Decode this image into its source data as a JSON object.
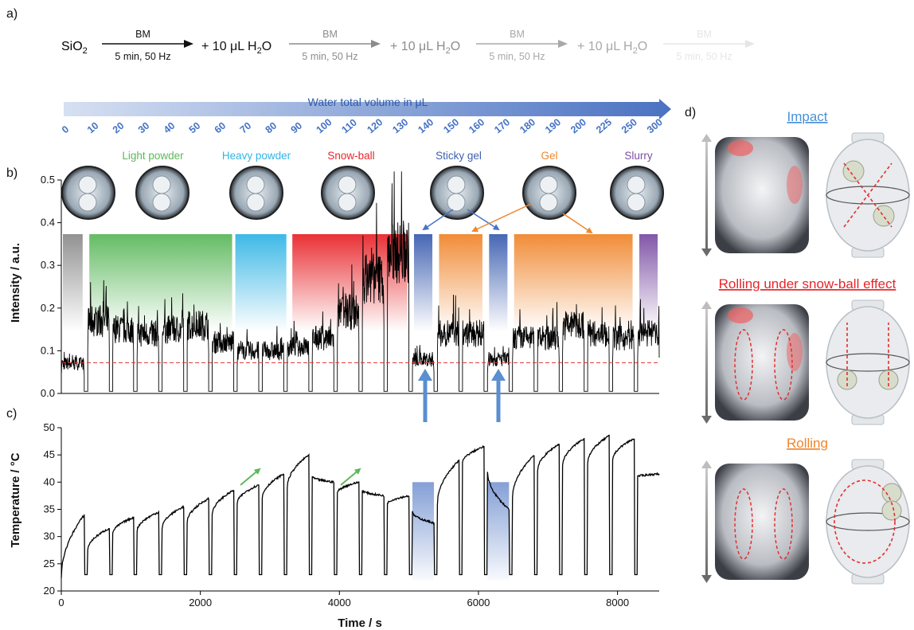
{
  "panel_labels": {
    "a": "a)",
    "b": "b)",
    "c": "c)",
    "d": "d)"
  },
  "scheme": {
    "reactant": "SiO",
    "reactant_sub": "2",
    "step_top": "BM",
    "step_bottom": "5 min, 50 Hz",
    "water_add": "+ 10 μL H",
    "water_sub": "2",
    "water_tail": "O",
    "steps": [
      {
        "color": "#111111"
      },
      {
        "color": "#8c8c8c"
      },
      {
        "color": "#a8a8a8"
      },
      {
        "color": "#e6e6e6"
      }
    ]
  },
  "water_axis": {
    "title": "Water total volume in μL",
    "ticks": [
      "0",
      "10",
      "20",
      "30",
      "40",
      "50",
      "60",
      "70",
      "80",
      "90",
      "100",
      "110",
      "120",
      "130",
      "140",
      "150",
      "160",
      "170",
      "180",
      "190",
      "200",
      "225",
      "250",
      "300"
    ],
    "color": "#4472c4"
  },
  "phases": [
    {
      "label": "Light powder",
      "color": "#5cb85c"
    },
    {
      "label": "Heavy powder",
      "color": "#33b5e5"
    },
    {
      "label": "Snow-ball",
      "color": "#e8262b"
    },
    {
      "label": "Sticky gel",
      "color": "#3d5fb0"
    },
    {
      "label": "Gel",
      "color": "#f0862d"
    },
    {
      "label": "Slurry",
      "color": "#7b4ea3"
    }
  ],
  "modes": [
    {
      "title": "Impact",
      "color": "#4a90d9"
    },
    {
      "title": "Rolling under snow-ball effect",
      "color": "#e8262b"
    },
    {
      "title": "Rolling",
      "color": "#f0862d"
    }
  ],
  "chart_data": [
    {
      "type": "line",
      "panel": "b",
      "xlabel": "",
      "ylabel": "Intensity / a.u.",
      "xlim": [
        0,
        8600
      ],
      "ylim": [
        0,
        0.5
      ],
      "yticks": [
        0.0,
        0.1,
        0.2,
        0.3,
        0.4,
        0.5
      ],
      "baseline": 0.072,
      "milling_intervals_s": [
        [
          0,
          330
        ],
        [
          380,
          690
        ],
        [
          740,
          1040
        ],
        [
          1090,
          1400
        ],
        [
          1450,
          1760
        ],
        [
          1810,
          2120
        ],
        [
          2170,
          2480
        ],
        [
          2530,
          2840
        ],
        [
          2890,
          3200
        ],
        [
          3250,
          3560
        ],
        [
          3610,
          3920
        ],
        [
          3970,
          4280
        ],
        [
          4330,
          4640
        ],
        [
          4690,
          5000
        ],
        [
          5050,
          5360
        ],
        [
          5410,
          5720
        ],
        [
          5770,
          6080
        ],
        [
          6130,
          6440
        ],
        [
          6490,
          6800
        ],
        [
          6850,
          7160
        ],
        [
          7210,
          7520
        ],
        [
          7570,
          7880
        ],
        [
          7930,
          8240
        ],
        [
          8290,
          8600
        ]
      ],
      "segment_mean_intensity": [
        0.07,
        0.17,
        0.15,
        0.14,
        0.15,
        0.16,
        0.12,
        0.1,
        0.1,
        0.11,
        0.13,
        0.19,
        0.27,
        0.33,
        0.08,
        0.14,
        0.14,
        0.08,
        0.13,
        0.13,
        0.16,
        0.14,
        0.13,
        0.14
      ],
      "phase_regions_s": [
        {
          "phase": "none",
          "range": [
            0,
            330
          ],
          "color": "#8c8c8c"
        },
        {
          "phase": "Light powder",
          "range": [
            380,
            2480
          ],
          "color": "#5cb85c"
        },
        {
          "phase": "Heavy powder",
          "range": [
            2480,
            3260
          ],
          "color": "#33b5e5"
        },
        {
          "phase": "Snow-ball",
          "range": [
            3300,
            5000
          ],
          "color": "#e8262b"
        },
        {
          "phase": "Sticky gel",
          "range": [
            5050,
            5360
          ],
          "color": "#3d5fb0"
        },
        {
          "phase": "Gel",
          "range": [
            5410,
            6080
          ],
          "color": "#f0862d"
        },
        {
          "phase": "Sticky gel",
          "range": [
            6130,
            6440
          ],
          "color": "#3d5fb0"
        },
        {
          "phase": "Gel",
          "range": [
            6490,
            8240
          ],
          "color": "#f0862d"
        },
        {
          "phase": "Slurry",
          "range": [
            8290,
            8600
          ],
          "color": "#7b4ea3"
        }
      ],
      "annotations": [
        "Sticky gel arrows at 5200 s and 6280 s"
      ]
    },
    {
      "type": "line",
      "panel": "c",
      "xlabel": "Time / s",
      "ylabel": "Temperature / °C",
      "xlim": [
        0,
        8600
      ],
      "ylim": [
        20,
        50
      ],
      "xticks": [
        0,
        2000,
        4000,
        6000,
        8000
      ],
      "yticks": [
        20,
        25,
        30,
        35,
        40,
        45,
        50
      ],
      "segments": [
        {
          "start_s": 0,
          "end_s": 330,
          "T_start": 22.5,
          "T_end": 34.0
        },
        {
          "start_s": 380,
          "end_s": 690,
          "T_start": 27.5,
          "T_end": 31.5
        },
        {
          "start_s": 740,
          "end_s": 1040,
          "T_start": 30.5,
          "T_end": 33.5
        },
        {
          "start_s": 1090,
          "end_s": 1400,
          "T_start": 31.0,
          "T_end": 34.5
        },
        {
          "start_s": 1450,
          "end_s": 1760,
          "T_start": 31.5,
          "T_end": 35.5
        },
        {
          "start_s": 1810,
          "end_s": 2120,
          "T_start": 32.5,
          "T_end": 37.0
        },
        {
          "start_s": 2170,
          "end_s": 2480,
          "T_start": 34.0,
          "T_end": 38.5
        },
        {
          "start_s": 2530,
          "end_s": 2840,
          "T_start": 36.0,
          "T_end": 39.5
        },
        {
          "start_s": 2890,
          "end_s": 3200,
          "T_start": 37.0,
          "T_end": 41.5
        },
        {
          "start_s": 3250,
          "end_s": 3560,
          "T_start": 39.0,
          "T_end": 45.0
        },
        {
          "start_s": 3610,
          "end_s": 3920,
          "T_start": 41.0,
          "T_end": 40.0
        },
        {
          "start_s": 3970,
          "end_s": 4280,
          "T_start": 38.0,
          "T_end": 40.0
        },
        {
          "start_s": 4330,
          "end_s": 4640,
          "T_start": 38.5,
          "T_end": 37.5
        },
        {
          "start_s": 4690,
          "end_s": 5000,
          "T_start": 36.0,
          "T_end": 37.5
        },
        {
          "start_s": 5050,
          "end_s": 5360,
          "T_start": 34.5,
          "T_end": 32.5
        },
        {
          "start_s": 5410,
          "end_s": 5720,
          "T_start": 36.0,
          "T_end": 44.0
        },
        {
          "start_s": 5770,
          "end_s": 6080,
          "T_start": 43.5,
          "T_end": 46.5
        },
        {
          "start_s": 6130,
          "end_s": 6440,
          "T_start": 42.0,
          "T_end": 35.0
        },
        {
          "start_s": 6490,
          "end_s": 6800,
          "T_start": 37.0,
          "T_end": 45.0
        },
        {
          "start_s": 6850,
          "end_s": 7160,
          "T_start": 42.0,
          "T_end": 47.0
        },
        {
          "start_s": 7210,
          "end_s": 7520,
          "T_start": 43.0,
          "T_end": 48.0
        },
        {
          "start_s": 7570,
          "end_s": 7880,
          "T_start": 43.5,
          "T_end": 48.5
        },
        {
          "start_s": 7930,
          "end_s": 8240,
          "T_start": 44.0,
          "T_end": 48.0
        },
        {
          "start_s": 8290,
          "end_s": 8600,
          "T_start": 41.0,
          "T_end": 41.5
        }
      ],
      "rest_temperature": 23.0,
      "highlights_s": [
        [
          5050,
          5360
        ],
        [
          6130,
          6440
        ]
      ]
    }
  ]
}
